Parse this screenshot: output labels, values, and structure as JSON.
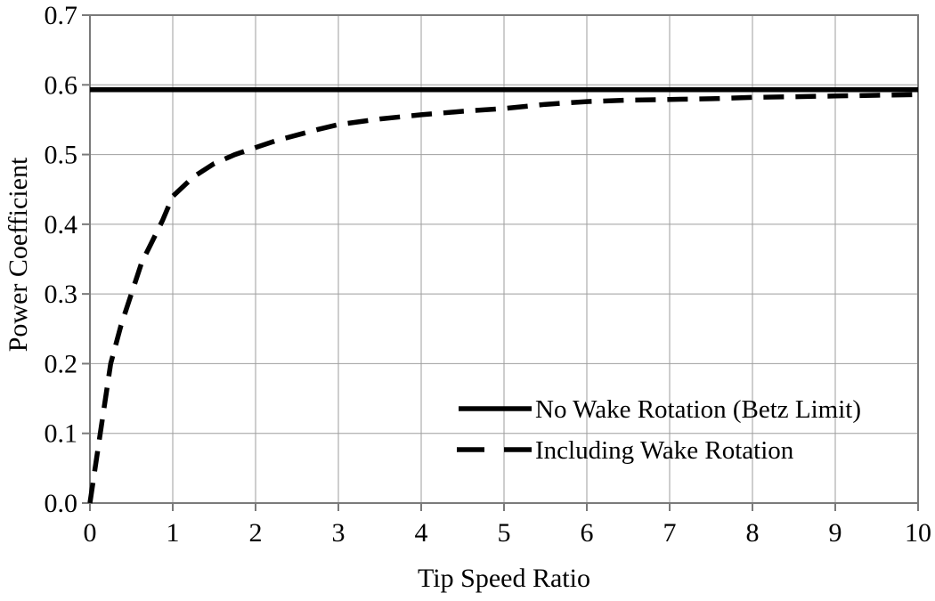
{
  "colors": {
    "background": "#ffffff",
    "line": "#000000",
    "gridline": "#9e9e9e",
    "border": "#7a7a7a",
    "tick": "#7a7a7a",
    "text": "#000000"
  },
  "chart_data": {
    "type": "line",
    "title": "",
    "xlabel": "Tip Speed Ratio",
    "ylabel": "Power Coefficient",
    "xlim": [
      0,
      10
    ],
    "ylim": [
      0.0,
      0.7
    ],
    "x_ticks": [
      0,
      1,
      2,
      3,
      4,
      5,
      6,
      7,
      8,
      9,
      10
    ],
    "x_tick_labels": [
      "0",
      "1",
      "2",
      "3",
      "4",
      "5",
      "6",
      "7",
      "8",
      "9",
      "10"
    ],
    "y_ticks": [
      0.0,
      0.1,
      0.2,
      0.3,
      0.4,
      0.5,
      0.6,
      0.7
    ],
    "y_tick_labels": [
      "0.0",
      "0.1",
      "0.2",
      "0.3",
      "0.4",
      "0.5",
      "0.6",
      "0.7"
    ],
    "grid": true,
    "legend_position": "inside-lower-right",
    "series": [
      {
        "name": "No Wake Rotation (Betz Limit)",
        "style": "solid",
        "color": "#000000",
        "x": [
          0,
          10
        ],
        "y": [
          0.593,
          0.593
        ]
      },
      {
        "name": "Including Wake Rotation",
        "style": "dashed",
        "color": "#000000",
        "x": [
          0,
          0.125,
          0.25,
          0.375,
          0.5,
          0.625,
          0.75,
          0.875,
          1.0,
          1.25,
          1.5,
          1.75,
          2.0,
          2.25,
          2.5,
          2.75,
          3.0,
          3.5,
          4.0,
          4.5,
          5.0,
          5.5,
          6.0,
          6.5,
          7.0,
          7.5,
          8.0,
          8.5,
          9.0,
          9.5,
          10.0
        ],
        "y": [
          0,
          0.1,
          0.2,
          0.255,
          0.3,
          0.345,
          0.375,
          0.405,
          0.44,
          0.468,
          0.487,
          0.5,
          0.51,
          0.52,
          0.528,
          0.536,
          0.543,
          0.551,
          0.557,
          0.562,
          0.566,
          0.572,
          0.576,
          0.578,
          0.579,
          0.58,
          0.582,
          0.583,
          0.584,
          0.585,
          0.586
        ]
      }
    ]
  }
}
